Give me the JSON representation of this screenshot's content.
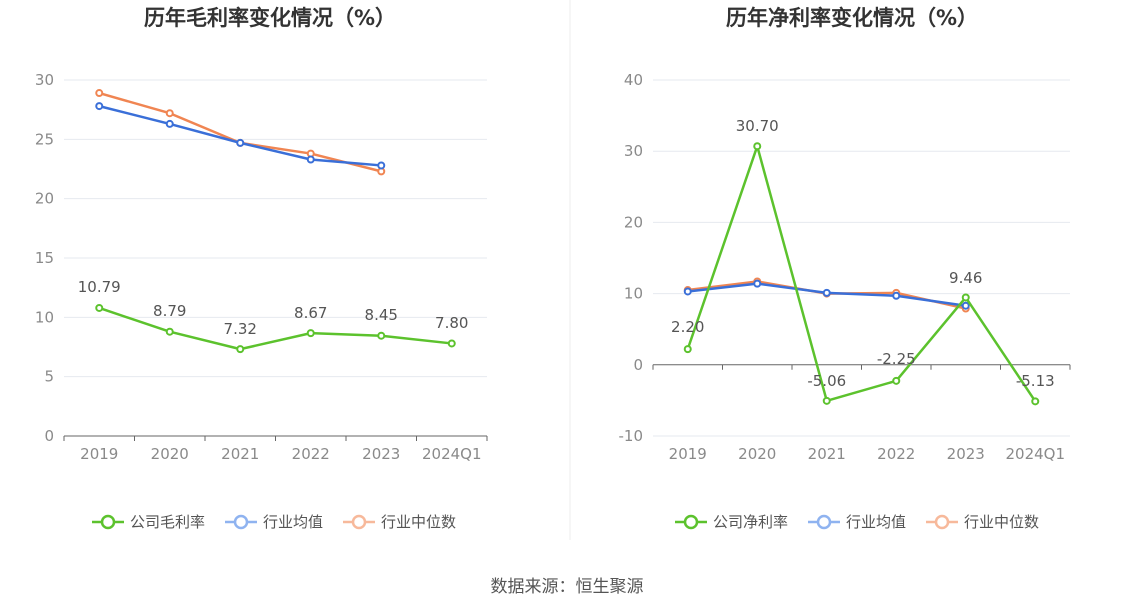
{
  "chart_data": [
    {
      "type": "line",
      "title": "历年毛利率变化情况（%）",
      "categories": [
        "2019",
        "2020",
        "2021",
        "2022",
        "2023",
        "2024Q1"
      ],
      "ylim": [
        0,
        30
      ],
      "yticks": [
        0,
        5,
        10,
        15,
        20,
        25,
        30
      ],
      "grid": true,
      "legend_position": "bottom",
      "series": [
        {
          "name": "公司毛利率",
          "color": "#5cc22d",
          "values": [
            10.79,
            8.79,
            7.32,
            8.67,
            8.45,
            7.8
          ],
          "labels": [
            "10.79",
            "8.79",
            "7.32",
            "8.67",
            "8.45",
            "7.80"
          ]
        },
        {
          "name": "行业均值",
          "color": "#3a6fd8",
          "values": [
            27.8,
            26.3,
            24.7,
            23.3,
            22.8,
            null
          ]
        },
        {
          "name": "行业中位数",
          "color": "#f08552",
          "values": [
            28.9,
            27.2,
            24.7,
            23.8,
            22.3,
            null
          ]
        }
      ]
    },
    {
      "type": "line",
      "title": "历年净利率变化情况（%）",
      "categories": [
        "2019",
        "2020",
        "2021",
        "2022",
        "2023",
        "2024Q1"
      ],
      "ylim": [
        -10,
        40
      ],
      "yticks": [
        -10,
        0,
        10,
        20,
        30,
        40
      ],
      "grid": true,
      "legend_position": "bottom",
      "series": [
        {
          "name": "公司净利率",
          "color": "#5cc22d",
          "values": [
            2.2,
            30.7,
            -5.06,
            -2.25,
            9.46,
            -5.13
          ],
          "labels": [
            "2.20",
            "30.70",
            "-5.06",
            "-2.25",
            "9.46",
            "-5.13"
          ]
        },
        {
          "name": "行业均值",
          "color": "#3a6fd8",
          "values": [
            10.3,
            11.4,
            10.1,
            9.7,
            8.3,
            null
          ]
        },
        {
          "name": "行业中位数",
          "color": "#f08552",
          "values": [
            10.5,
            11.7,
            10.0,
            10.1,
            7.9,
            null
          ]
        }
      ]
    }
  ],
  "legend_icon_colors": {
    "公司": "#5cc22d",
    "行业均值": "#8fb3f0",
    "行业中位数": "#f7b99b"
  },
  "footer": {
    "source": "数据来源：恒生聚源"
  }
}
